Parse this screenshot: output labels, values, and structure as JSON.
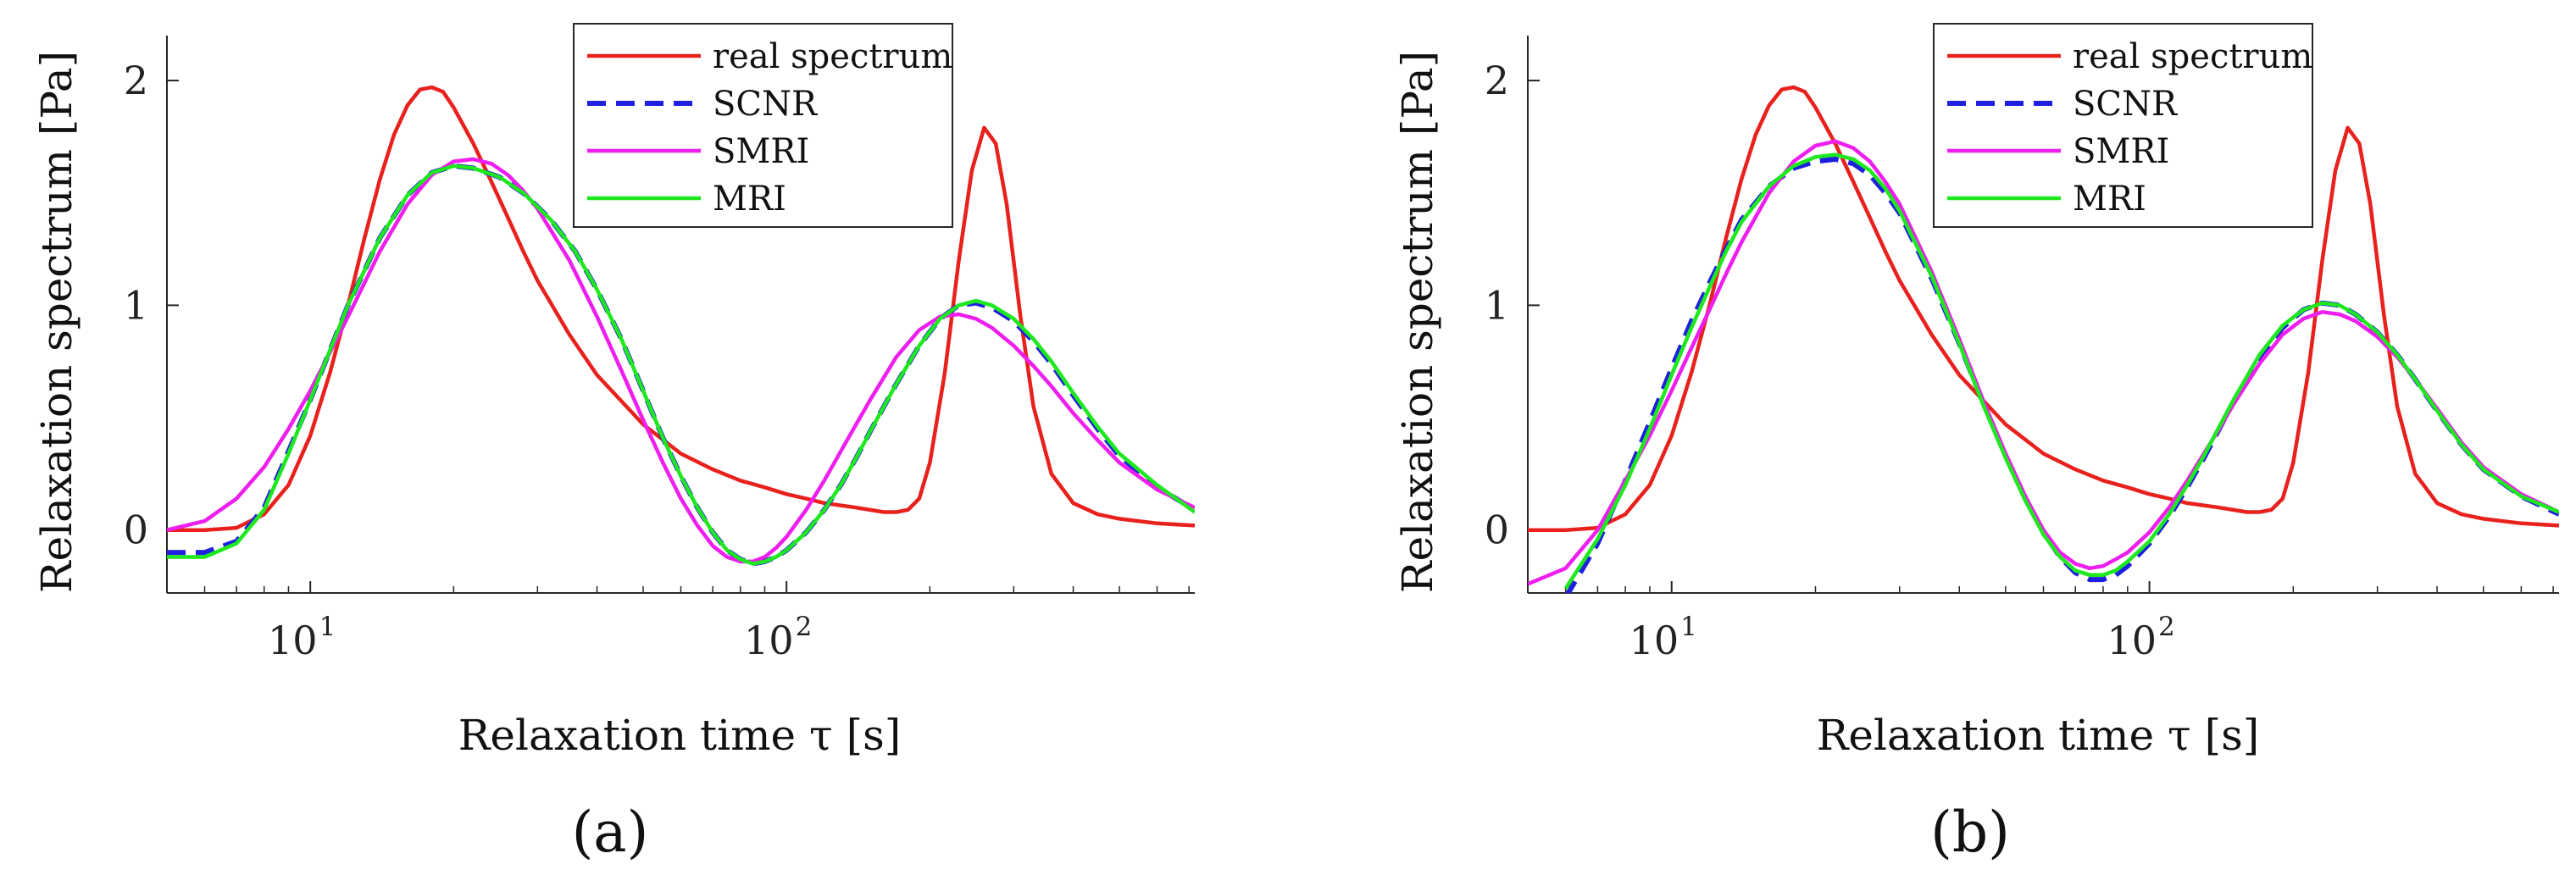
{
  "figure": {
    "panel_labels": [
      "(a)",
      "(b)"
    ]
  },
  "chart_data": [
    {
      "type": "line",
      "panel": "(a)",
      "xlabel": "Relaxation time τ [s]",
      "ylabel": "Relaxation spectrum [Pa]",
      "xscale": "log",
      "xlim": [
        5,
        720
      ],
      "ylim": [
        -0.28,
        2.2
      ],
      "xticks": [
        {
          "base": "10",
          "exp": "1",
          "value": 10
        },
        {
          "base": "10",
          "exp": "2",
          "value": 100
        }
      ],
      "yticks": [
        {
          "label": "0",
          "value": 0
        },
        {
          "label": "1",
          "value": 1
        },
        {
          "label": "2",
          "value": 2
        }
      ],
      "legend_position": "top-center",
      "series": [
        {
          "name": "real spectrum",
          "color": "#e8211d",
          "dash": "solid",
          "x": [
            5,
            6,
            7,
            8,
            9,
            10,
            11,
            12,
            13,
            14,
            15,
            16,
            17,
            18,
            19,
            20,
            22,
            24,
            26,
            28,
            30,
            35,
            40,
            50,
            60,
            70,
            80,
            90,
            100,
            110,
            120,
            140,
            160,
            170,
            180,
            190,
            200,
            215,
            230,
            245,
            260,
            275,
            290,
            310,
            330,
            360,
            400,
            450,
            500,
            600,
            720
          ],
          "values": [
            0.0,
            0.0,
            0.01,
            0.07,
            0.2,
            0.42,
            0.7,
            1.0,
            1.3,
            1.56,
            1.76,
            1.89,
            1.96,
            1.97,
            1.95,
            1.88,
            1.72,
            1.55,
            1.39,
            1.24,
            1.11,
            0.87,
            0.69,
            0.47,
            0.34,
            0.27,
            0.22,
            0.19,
            0.16,
            0.14,
            0.12,
            0.1,
            0.08,
            0.08,
            0.09,
            0.14,
            0.3,
            0.7,
            1.2,
            1.6,
            1.79,
            1.72,
            1.45,
            0.95,
            0.55,
            0.25,
            0.12,
            0.07,
            0.05,
            0.03,
            0.02
          ]
        },
        {
          "name": "SCNR",
          "color": "#1f1fe0",
          "dash": "dashed",
          "x": [
            5,
            6,
            7,
            8,
            9,
            10,
            11,
            12,
            14,
            16,
            18,
            20,
            22,
            25,
            28,
            32,
            36,
            40,
            45,
            50,
            55,
            60,
            65,
            70,
            75,
            80,
            85,
            90,
            95,
            100,
            110,
            120,
            130,
            140,
            150,
            170,
            190,
            210,
            230,
            250,
            270,
            300,
            330,
            360,
            400,
            450,
            500,
            600,
            720
          ],
          "values": [
            -0.1,
            -0.1,
            -0.05,
            0.1,
            0.35,
            0.58,
            0.8,
            1.0,
            1.3,
            1.49,
            1.59,
            1.62,
            1.61,
            1.57,
            1.5,
            1.38,
            1.24,
            1.07,
            0.85,
            0.62,
            0.41,
            0.24,
            0.1,
            -0.01,
            -0.09,
            -0.13,
            -0.15,
            -0.14,
            -0.12,
            -0.09,
            -0.01,
            0.09,
            0.2,
            0.32,
            0.44,
            0.65,
            0.82,
            0.94,
            1.0,
            1.01,
            0.99,
            0.93,
            0.84,
            0.74,
            0.6,
            0.45,
            0.33,
            0.19,
            0.09
          ]
        },
        {
          "name": "SMRI",
          "color": "#ee1eee",
          "dash": "solid",
          "x": [
            5,
            6,
            7,
            8,
            9,
            10,
            11,
            12,
            14,
            16,
            18,
            20,
            22,
            24,
            26,
            28,
            30,
            35,
            40,
            45,
            50,
            55,
            60,
            65,
            70,
            75,
            80,
            85,
            90,
            95,
            100,
            110,
            120,
            130,
            140,
            150,
            170,
            190,
            210,
            230,
            250,
            270,
            300,
            330,
            360,
            400,
            450,
            500,
            600,
            720
          ],
          "values": [
            0.0,
            0.04,
            0.14,
            0.28,
            0.45,
            0.62,
            0.79,
            0.95,
            1.24,
            1.45,
            1.58,
            1.64,
            1.65,
            1.63,
            1.58,
            1.51,
            1.43,
            1.2,
            0.95,
            0.71,
            0.49,
            0.3,
            0.14,
            0.02,
            -0.07,
            -0.12,
            -0.14,
            -0.14,
            -0.12,
            -0.08,
            -0.03,
            0.09,
            0.22,
            0.35,
            0.47,
            0.58,
            0.77,
            0.89,
            0.95,
            0.96,
            0.94,
            0.9,
            0.82,
            0.73,
            0.64,
            0.52,
            0.4,
            0.3,
            0.18,
            0.1
          ]
        },
        {
          "name": "MRI",
          "color": "#1ee81e",
          "dash": "solid",
          "x": [
            5,
            6,
            7,
            8,
            9,
            10,
            11,
            12,
            14,
            16,
            18,
            20,
            22,
            25,
            28,
            32,
            36,
            40,
            45,
            50,
            55,
            60,
            65,
            70,
            75,
            80,
            85,
            90,
            95,
            100,
            110,
            120,
            130,
            140,
            150,
            170,
            190,
            210,
            230,
            250,
            270,
            300,
            330,
            360,
            400,
            450,
            500,
            600,
            720
          ],
          "values": [
            -0.12,
            -0.12,
            -0.06,
            0.09,
            0.34,
            0.58,
            0.8,
            1.0,
            1.3,
            1.49,
            1.59,
            1.62,
            1.61,
            1.57,
            1.5,
            1.38,
            1.24,
            1.07,
            0.85,
            0.62,
            0.41,
            0.24,
            0.1,
            -0.01,
            -0.09,
            -0.13,
            -0.15,
            -0.14,
            -0.12,
            -0.09,
            -0.01,
            0.09,
            0.2,
            0.32,
            0.44,
            0.65,
            0.82,
            0.94,
            1.0,
            1.02,
            1.0,
            0.94,
            0.85,
            0.75,
            0.61,
            0.46,
            0.34,
            0.2,
            0.08
          ]
        }
      ]
    },
    {
      "type": "line",
      "panel": "(b)",
      "xlabel": "Relaxation time τ [s]",
      "ylabel": "Relaxation spectrum [Pa]",
      "xscale": "log",
      "xlim": [
        5,
        720
      ],
      "ylim": [
        -0.28,
        2.2
      ],
      "xticks": [
        {
          "base": "10",
          "exp": "1",
          "value": 10
        },
        {
          "base": "10",
          "exp": "2",
          "value": 100
        }
      ],
      "yticks": [
        {
          "label": "0",
          "value": 0
        },
        {
          "label": "1",
          "value": 1
        },
        {
          "label": "2",
          "value": 2
        }
      ],
      "legend_position": "top-center",
      "series": [
        {
          "name": "real spectrum",
          "color": "#e8211d",
          "dash": "solid",
          "x": [
            5,
            6,
            7,
            8,
            9,
            10,
            11,
            12,
            13,
            14,
            15,
            16,
            17,
            18,
            19,
            20,
            22,
            24,
            26,
            28,
            30,
            35,
            40,
            50,
            60,
            70,
            80,
            90,
            100,
            110,
            120,
            140,
            160,
            170,
            180,
            190,
            200,
            215,
            230,
            245,
            260,
            275,
            290,
            310,
            330,
            360,
            400,
            450,
            500,
            600,
            720
          ],
          "values": [
            0.0,
            0.0,
            0.01,
            0.07,
            0.2,
            0.42,
            0.7,
            1.0,
            1.3,
            1.56,
            1.76,
            1.89,
            1.96,
            1.97,
            1.95,
            1.88,
            1.72,
            1.55,
            1.39,
            1.24,
            1.11,
            0.87,
            0.69,
            0.47,
            0.34,
            0.27,
            0.22,
            0.19,
            0.16,
            0.14,
            0.12,
            0.1,
            0.08,
            0.08,
            0.09,
            0.14,
            0.3,
            0.7,
            1.2,
            1.6,
            1.79,
            1.72,
            1.45,
            0.95,
            0.55,
            0.25,
            0.12,
            0.07,
            0.05,
            0.03,
            0.02
          ]
        },
        {
          "name": "SCNR",
          "color": "#1f1fe0",
          "dash": "dashed",
          "x": [
            6,
            7,
            8,
            9,
            10,
            11,
            12,
            13,
            14,
            16,
            18,
            20,
            22,
            24,
            26,
            28,
            30,
            35,
            40,
            45,
            50,
            55,
            60,
            65,
            70,
            75,
            80,
            85,
            90,
            100,
            110,
            120,
            130,
            140,
            150,
            170,
            190,
            210,
            230,
            250,
            270,
            300,
            330,
            360,
            400,
            450,
            500,
            600,
            720
          ],
          "values": [
            -0.3,
            -0.06,
            0.22,
            0.48,
            0.72,
            0.93,
            1.1,
            1.25,
            1.38,
            1.53,
            1.61,
            1.64,
            1.65,
            1.63,
            1.58,
            1.5,
            1.41,
            1.12,
            0.83,
            0.56,
            0.33,
            0.14,
            -0.01,
            -0.12,
            -0.19,
            -0.22,
            -0.22,
            -0.2,
            -0.16,
            -0.06,
            0.06,
            0.19,
            0.32,
            0.45,
            0.57,
            0.77,
            0.9,
            0.98,
            1.01,
            1.0,
            0.96,
            0.88,
            0.78,
            0.67,
            0.53,
            0.38,
            0.27,
            0.15,
            0.07
          ]
        },
        {
          "name": "SMRI",
          "color": "#ee1eee",
          "dash": "solid",
          "x": [
            5,
            6,
            7,
            8,
            9,
            10,
            11,
            12,
            13,
            14,
            16,
            18,
            20,
            22,
            24,
            26,
            28,
            30,
            35,
            40,
            45,
            50,
            55,
            60,
            65,
            70,
            75,
            80,
            85,
            90,
            100,
            110,
            120,
            130,
            140,
            150,
            170,
            190,
            210,
            230,
            250,
            270,
            300,
            330,
            360,
            400,
            450,
            500,
            600,
            720
          ],
          "values": [
            -0.24,
            -0.17,
            0.0,
            0.22,
            0.42,
            0.62,
            0.81,
            0.98,
            1.14,
            1.28,
            1.5,
            1.64,
            1.71,
            1.73,
            1.7,
            1.64,
            1.55,
            1.45,
            1.15,
            0.85,
            0.57,
            0.34,
            0.15,
            0.0,
            -0.1,
            -0.15,
            -0.17,
            -0.16,
            -0.13,
            -0.1,
            -0.01,
            0.1,
            0.22,
            0.34,
            0.45,
            0.56,
            0.74,
            0.87,
            0.94,
            0.97,
            0.96,
            0.93,
            0.86,
            0.77,
            0.67,
            0.54,
            0.39,
            0.28,
            0.16,
            0.08
          ]
        },
        {
          "name": "MRI",
          "color": "#1ee81e",
          "dash": "solid",
          "x": [
            6,
            7,
            8,
            9,
            10,
            11,
            12,
            13,
            14,
            16,
            18,
            20,
            22,
            24,
            26,
            28,
            30,
            35,
            40,
            45,
            50,
            55,
            60,
            65,
            70,
            75,
            80,
            85,
            90,
            100,
            110,
            120,
            130,
            140,
            150,
            170,
            190,
            210,
            230,
            250,
            270,
            300,
            330,
            360,
            400,
            450,
            500,
            600,
            720
          ],
          "values": [
            -0.26,
            -0.04,
            0.2,
            0.45,
            0.69,
            0.9,
            1.08,
            1.24,
            1.37,
            1.53,
            1.62,
            1.66,
            1.67,
            1.65,
            1.6,
            1.52,
            1.42,
            1.13,
            0.83,
            0.55,
            0.32,
            0.13,
            -0.02,
            -0.12,
            -0.18,
            -0.2,
            -0.2,
            -0.18,
            -0.14,
            -0.05,
            0.07,
            0.2,
            0.33,
            0.46,
            0.58,
            0.78,
            0.91,
            0.98,
            1.01,
            1.0,
            0.96,
            0.88,
            0.78,
            0.67,
            0.53,
            0.38,
            0.27,
            0.15,
            0.08
          ]
        }
      ]
    }
  ]
}
